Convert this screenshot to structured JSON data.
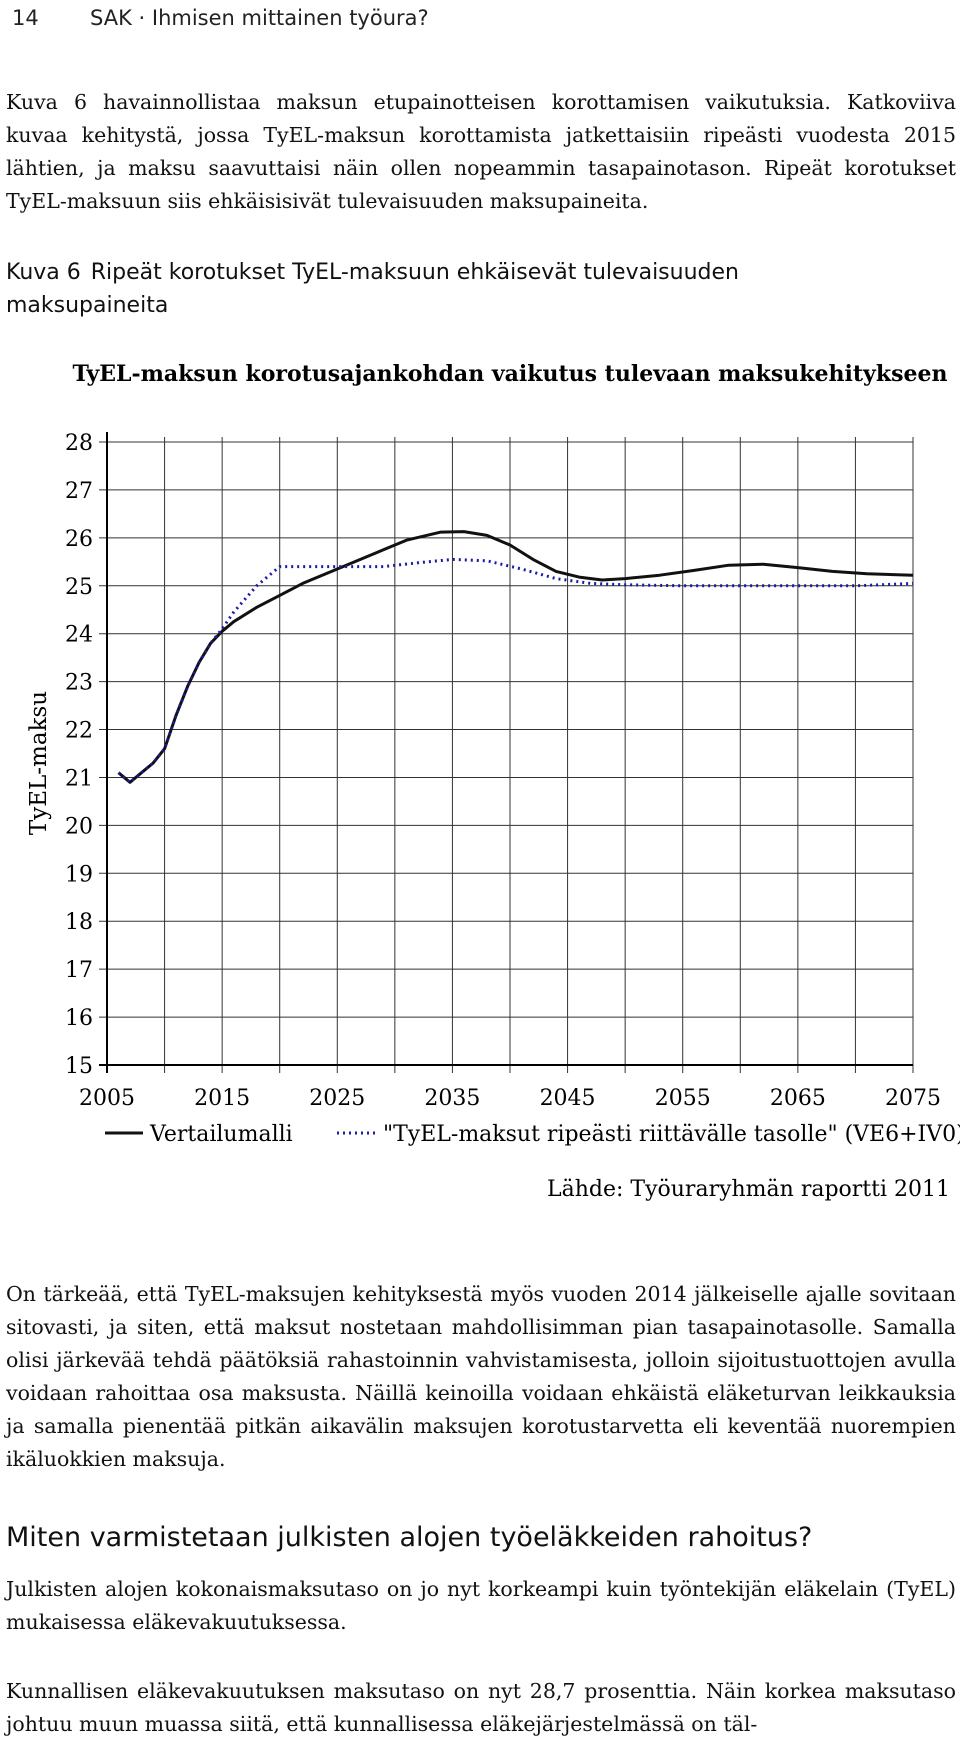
{
  "header": {
    "page_number": "14",
    "running_title": "SAK · Ihmisen mittainen työura?"
  },
  "intro_paragraph": "Kuva 6 havainnollistaa maksun etupainotteisen korottamisen vaikutuksia. Katkoviiva kuvaa kehitystä, jossa TyEL-maksun korottamista jatkettaisiin ripeästi vuodesta 2015 lähtien, ja maksu saavuttaisi näin ollen nopeammin tasapainotason. Ripeät korotukset TyEL-maksuun siis ehkäisisivät tulevaisuuden maksupaineita.",
  "figure": {
    "label": "Kuva 6",
    "caption": "Ripeät korotukset TyEL-maksuun ehkäisevät tulevaisuuden maksupaineita"
  },
  "chart_data": {
    "type": "line",
    "title": "TyEL-maksun korotusajankohdan vaikutus tulevaan maksukehitykseen",
    "xlabel": "",
    "ylabel": "TyEL-maksu",
    "xlim": [
      2005,
      2075
    ],
    "ylim": [
      15,
      28
    ],
    "x_ticks": [
      "2005",
      "2015",
      "2025",
      "2035",
      "2045",
      "2055",
      "2065",
      "2075"
    ],
    "y_ticks": [
      "15",
      "16",
      "17",
      "18",
      "19",
      "20",
      "21",
      "22",
      "23",
      "24",
      "25",
      "26",
      "27",
      "28"
    ],
    "grid": true,
    "legend_position": "bottom",
    "source_note": "Lähde: Työuraryhmän raportti 2011",
    "series": [
      {
        "name": "Vertailumalli",
        "style": "solid",
        "color": "#111111",
        "points": [
          [
            2006,
            21.1
          ],
          [
            2007,
            20.9
          ],
          [
            2008,
            21.1
          ],
          [
            2009,
            21.3
          ],
          [
            2010,
            21.6
          ],
          [
            2011,
            22.3
          ],
          [
            2012,
            22.9
          ],
          [
            2013,
            23.4
          ],
          [
            2014,
            23.8
          ],
          [
            2015,
            24.05
          ],
          [
            2016,
            24.25
          ],
          [
            2018,
            24.55
          ],
          [
            2020,
            24.8
          ],
          [
            2022,
            25.05
          ],
          [
            2025,
            25.35
          ],
          [
            2028,
            25.65
          ],
          [
            2031,
            25.95
          ],
          [
            2034,
            26.12
          ],
          [
            2036,
            26.13
          ],
          [
            2038,
            26.05
          ],
          [
            2040,
            25.85
          ],
          [
            2042,
            25.55
          ],
          [
            2044,
            25.3
          ],
          [
            2046,
            25.18
          ],
          [
            2048,
            25.12
          ],
          [
            2050,
            25.15
          ],
          [
            2053,
            25.22
          ],
          [
            2056,
            25.32
          ],
          [
            2059,
            25.43
          ],
          [
            2062,
            25.45
          ],
          [
            2065,
            25.38
          ],
          [
            2068,
            25.3
          ],
          [
            2071,
            25.25
          ],
          [
            2075,
            25.22
          ]
        ]
      },
      {
        "name": "\"TyEL-maksut ripeästi riittävälle tasolle\" (VE6+IV0)",
        "style": "dotted",
        "color": "#1a1aa8",
        "points": [
          [
            2006,
            21.1
          ],
          [
            2007,
            20.9
          ],
          [
            2008,
            21.1
          ],
          [
            2009,
            21.3
          ],
          [
            2010,
            21.6
          ],
          [
            2011,
            22.3
          ],
          [
            2012,
            22.9
          ],
          [
            2013,
            23.4
          ],
          [
            2014,
            23.8
          ],
          [
            2015,
            24.1
          ],
          [
            2016,
            24.45
          ],
          [
            2018,
            25.0
          ],
          [
            2020,
            25.4
          ],
          [
            2023,
            25.4
          ],
          [
            2026,
            25.4
          ],
          [
            2029,
            25.4
          ],
          [
            2032,
            25.48
          ],
          [
            2035,
            25.55
          ],
          [
            2038,
            25.52
          ],
          [
            2041,
            25.35
          ],
          [
            2044,
            25.15
          ],
          [
            2047,
            25.05
          ],
          [
            2050,
            25.02
          ],
          [
            2055,
            25.0
          ],
          [
            2060,
            25.0
          ],
          [
            2065,
            25.0
          ],
          [
            2070,
            25.0
          ],
          [
            2075,
            25.05
          ]
        ]
      }
    ]
  },
  "middle_paragraph": "On tärkeää, että TyEL-maksujen kehityksestä myös vuoden 2014 jälkeiselle ajalle sovitaan sitovasti, ja siten, että maksut nostetaan mahdollisimman pian tasapainotasolle. Samalla olisi järkevää tehdä päätöksiä rahastoinnin vahvistamisesta, jolloin sijoitustuottojen avulla voidaan rahoittaa osa maksusta. Näillä keinoilla voidaan ehkäistä eläketurvan leikkauksia ja samalla pienentää pitkän aikavälin maksujen korotustarvetta eli keventää nuorempien ikäluokkien maksuja.",
  "section_heading": "Miten varmistetaan julkisten alojen työeläkkeiden rahoitus?",
  "section_paragraph_1": "Julkisten alojen kokonaismaksutaso on jo nyt korkeampi kuin työntekijän eläkelain (TyEL) mukaisessa eläkevakuutuksessa.",
  "section_paragraph_2": "Kunnallisen eläkevakuutuksen maksutaso on nyt 28,7 prosenttia. Näin korkea maksutaso johtuu muun muassa siitä, että kunnallisessa eläkejärjestelmässä on täl-"
}
